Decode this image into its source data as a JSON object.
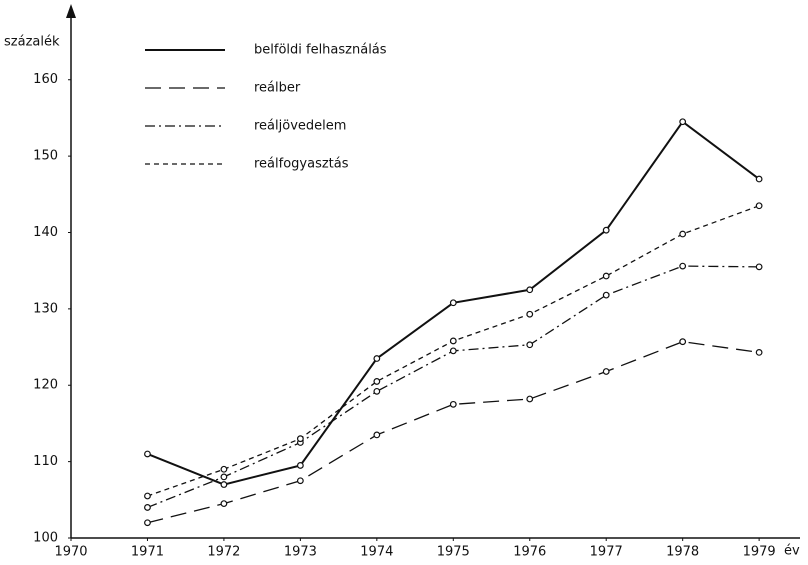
{
  "chart_data": {
    "type": "line",
    "y_label": "százalék",
    "x_label": "év",
    "x": [
      1971,
      1972,
      1973,
      1974,
      1975,
      1976,
      1977,
      1978,
      1979
    ],
    "xlim": [
      1970,
      1979.6
    ],
    "xticks": [
      1970,
      1971,
      1972,
      1973,
      1974,
      1975,
      1976,
      1977,
      1978,
      1979
    ],
    "ylim": [
      100,
      169
    ],
    "yticks": [
      100,
      110,
      120,
      130,
      140,
      150,
      160
    ],
    "grid": false,
    "series": [
      {
        "name": "belföldi felhasználás",
        "color": "#111111",
        "dash": "solid",
        "values": [
          111,
          107,
          109.5,
          123.5,
          130.8,
          132.5,
          140.3,
          154.5,
          147
        ]
      },
      {
        "name": "reálber",
        "color": "#111111",
        "dash": "long-dash",
        "values": [
          102,
          104.5,
          107.5,
          113.5,
          117.5,
          118.2,
          121.8,
          125.7,
          124.3
        ]
      },
      {
        "name": "reáljövedelem",
        "color": "#111111",
        "dash": "dash-dot",
        "values": [
          104,
          108,
          112.5,
          119.2,
          124.5,
          125.3,
          131.8,
          135.6,
          135.5
        ]
      },
      {
        "name": "reálfogyasztás",
        "color": "#111111",
        "dash": "short-dash",
        "values": [
          105.5,
          109,
          113,
          120.5,
          125.8,
          129.3,
          134.3,
          139.8,
          143.5
        ]
      }
    ]
  }
}
